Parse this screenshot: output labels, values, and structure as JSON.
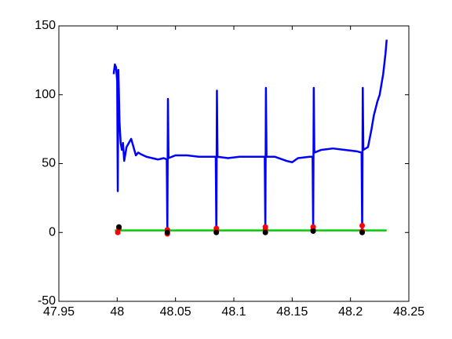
{
  "chart_data": {
    "type": "line",
    "xlim": [
      47.95,
      48.25
    ],
    "xticks": [
      47.95,
      48,
      48.05,
      48.1,
      48.15,
      48.2,
      48.25
    ],
    "ylim": [
      -50,
      150
    ],
    "yticks": [
      -50,
      0,
      50,
      100,
      150
    ],
    "grid": false,
    "series": [
      {
        "style": "line",
        "color": "#0000ff",
        "x": [
          47.997,
          47.998,
          47.999,
          48.0,
          48.0005,
          48.001,
          48.0015,
          48.002,
          48.003,
          48.004,
          48.005,
          48.006,
          48.008,
          48.01,
          48.012,
          48.014,
          48.016,
          48.018,
          48.02,
          48.025,
          48.03,
          48.035,
          48.04,
          48.0425,
          48.043,
          48.0435,
          48.044,
          48.05,
          48.06,
          48.07,
          48.08,
          48.0845,
          48.085,
          48.0855,
          48.086,
          48.095,
          48.105,
          48.115,
          48.1265,
          48.127,
          48.1275,
          48.128,
          48.135,
          48.145,
          48.15,
          48.155,
          48.165,
          48.1675,
          48.168,
          48.1685,
          48.169,
          48.175,
          48.185,
          48.195,
          48.205,
          48.2095,
          48.21,
          48.2105,
          48.211,
          48.215,
          48.218,
          48.22,
          48.223,
          48.225,
          48.228,
          48.23,
          48.231
        ],
        "values": [
          115,
          122,
          120,
          110,
          30,
          118,
          100,
          80,
          65,
          60,
          65,
          52,
          62,
          65,
          68,
          62,
          56,
          58,
          57,
          55,
          54,
          53,
          54,
          53,
          0,
          97,
          54,
          56,
          56,
          55,
          55,
          55,
          0,
          103,
          55,
          54,
          55,
          55,
          55,
          0,
          105,
          55,
          55,
          52,
          51,
          54,
          55,
          55,
          0,
          105,
          58,
          60,
          61,
          60,
          59,
          58,
          0,
          105,
          60,
          62,
          75,
          85,
          95,
          100,
          115,
          130,
          140
        ]
      },
      {
        "style": "line",
        "color": "#00cc00",
        "x": [
          47.998,
          48.231
        ],
        "values": [
          1.5,
          1.5
        ]
      },
      {
        "style": "markers",
        "color": "#ff0000",
        "x": [
          48.0005,
          48.0015,
          48.043,
          48.043,
          48.085,
          48.085,
          48.127,
          48.127,
          48.168,
          48.168,
          48.21,
          48.21
        ],
        "values": [
          0,
          3,
          -1,
          2,
          1,
          3,
          2,
          4,
          2,
          4,
          1,
          5
        ]
      },
      {
        "style": "markers",
        "color": "#000000",
        "x": [
          48.0015,
          48.043,
          48.085,
          48.127,
          48.168,
          48.21
        ],
        "values": [
          4,
          0,
          0,
          0,
          1,
          0
        ]
      }
    ]
  }
}
